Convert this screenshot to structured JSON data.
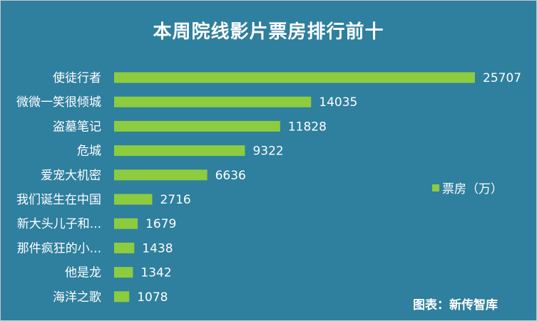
{
  "chart_data": {
    "type": "bar",
    "orientation": "horizontal",
    "title": "本周院线影片票房排行前十",
    "categories": [
      "使徒行者",
      "微微一笑很倾城",
      "盗墓笔记",
      "危城",
      "爱宠大机密",
      "我们诞生在中国",
      "新大头儿子和...",
      "那件疯狂的小...",
      "他是龙",
      "海洋之歌"
    ],
    "series": [
      {
        "name": "票房（万）",
        "values": [
          25707,
          14035,
          11828,
          9322,
          6636,
          2716,
          1679,
          1438,
          1342,
          1078
        ]
      }
    ],
    "xlim": [
      0,
      25707
    ],
    "grid": false,
    "legend_position": "right",
    "bar_color": "#8ccc3e",
    "background_color": "#2f7f9e"
  },
  "source_note": "图表：新传智库"
}
